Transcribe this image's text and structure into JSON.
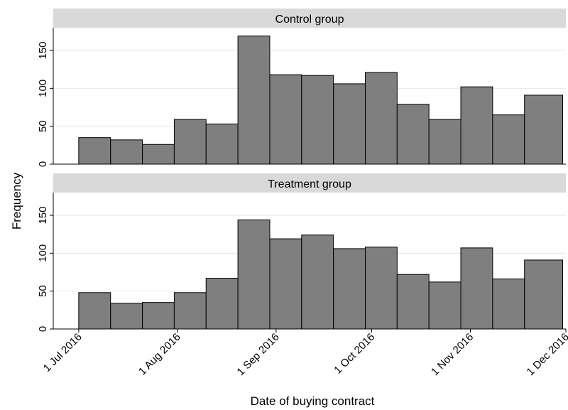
{
  "chart_data": {
    "type": "bar",
    "subtype": "histogram",
    "xlabel": "Date of buying contract",
    "ylabel": "Frequency",
    "x_ticks": [
      {
        "date": "2016-07-01",
        "label": "1 Jul 2016"
      },
      {
        "date": "2016-08-01",
        "label": "1 Aug 2016"
      },
      {
        "date": "2016-09-01",
        "label": "1 Sep 2016"
      },
      {
        "date": "2016-10-01",
        "label": "1 Oct 2016"
      },
      {
        "date": "2016-11-01",
        "label": "1 Nov 2016"
      },
      {
        "date": "2016-12-01",
        "label": "1 Dec 2016"
      }
    ],
    "xlim": [
      "2016-06-23",
      "2016-12-01"
    ],
    "bin_starts": [
      "2016-07-01",
      "2016-07-11",
      "2016-07-21",
      "2016-07-31",
      "2016-08-10",
      "2016-08-20",
      "2016-08-30",
      "2016-09-09",
      "2016-09-19",
      "2016-09-29",
      "2016-10-09",
      "2016-10-19",
      "2016-10-29",
      "2016-11-08",
      "2016-11-18"
    ],
    "bin_end": "2016-11-30",
    "ylim": [
      0,
      180
    ],
    "y_ticks": [
      0,
      50,
      100,
      150
    ],
    "grid": true,
    "bar_color": "#7f7f7f",
    "strip_color": "#d9d9d9",
    "panels": [
      {
        "title": "Control group",
        "values": [
          35,
          32,
          26,
          59,
          53,
          169,
          118,
          117,
          106,
          121,
          79,
          59,
          102,
          65,
          91
        ]
      },
      {
        "title": "Treatment group",
        "values": [
          48,
          34,
          35,
          48,
          67,
          144,
          119,
          124,
          106,
          108,
          72,
          62,
          107,
          66,
          91
        ]
      }
    ]
  }
}
